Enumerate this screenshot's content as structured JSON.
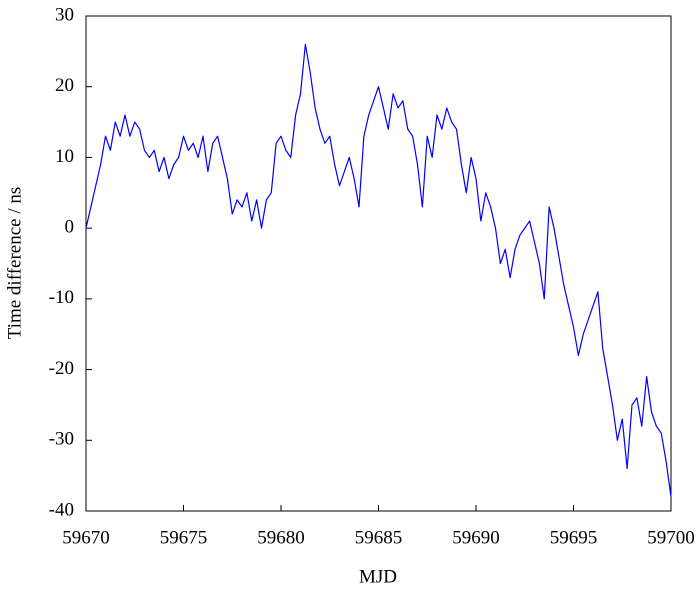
{
  "chart_data": {
    "type": "line",
    "x_label": "MJD",
    "y_label": "Time difference / ns",
    "x": [
      59670,
      59670.25,
      59670.5,
      59670.75,
      59671,
      59671.25,
      59671.5,
      59671.75,
      59672,
      59672.25,
      59672.5,
      59672.75,
      59673,
      59673.25,
      59673.5,
      59673.75,
      59674,
      59674.25,
      59674.5,
      59674.75,
      59675,
      59675.25,
      59675.5,
      59675.75,
      59676,
      59676.25,
      59676.5,
      59676.75,
      59677,
      59677.25,
      59677.5,
      59677.75,
      59678,
      59678.25,
      59678.5,
      59678.75,
      59679,
      59679.25,
      59679.5,
      59679.75,
      59680,
      59680.25,
      59680.5,
      59680.75,
      59681,
      59681.25,
      59681.5,
      59681.75,
      59682,
      59682.25,
      59682.5,
      59682.75,
      59683,
      59683.25,
      59683.5,
      59683.75,
      59684,
      59684.25,
      59684.5,
      59684.75,
      59685,
      59685.25,
      59685.5,
      59685.75,
      59686,
      59686.25,
      59686.5,
      59686.75,
      59687,
      59687.25,
      59687.5,
      59687.75,
      59688,
      59688.25,
      59688.5,
      59688.75,
      59689,
      59689.25,
      59689.5,
      59689.75,
      59690,
      59690.25,
      59690.5,
      59690.75,
      59691,
      59691.25,
      59691.5,
      59691.75,
      59692,
      59692.25,
      59692.5,
      59692.75,
      59693,
      59693.25,
      59693.5,
      59693.75,
      59694,
      59694.25,
      59694.5,
      59694.75,
      59695,
      59695.25,
      59695.5,
      59695.75,
      59696,
      59696.25,
      59696.5,
      59696.75,
      59697,
      59697.25,
      59697.5,
      59697.75,
      59698,
      59698.25,
      59698.5,
      59698.75,
      59699,
      59699.25,
      59699.5,
      59699.75,
      59700
    ],
    "series": [
      {
        "color": "#0000ff",
        "values": [
          0,
          3,
          6,
          9,
          13,
          11,
          15,
          13,
          16,
          13,
          15,
          14,
          11,
          10,
          11,
          8,
          10,
          7,
          9,
          10,
          13,
          11,
          12,
          10,
          13,
          8,
          12,
          13,
          10,
          7,
          2,
          4,
          3,
          5,
          1,
          4,
          0,
          4,
          5,
          12,
          13,
          11,
          10,
          16,
          19,
          26,
          22,
          17,
          14,
          12,
          13,
          9,
          6,
          8,
          10,
          7,
          3,
          13,
          16,
          18,
          20,
          17,
          14,
          19,
          17,
          18,
          14,
          13,
          9,
          3,
          13,
          10,
          16,
          14,
          17,
          15,
          14,
          9,
          5,
          10,
          7,
          1,
          5,
          3,
          0,
          -5,
          -3,
          -7,
          -3,
          -1,
          0,
          1,
          -2,
          -5,
          -10,
          3,
          0,
          -4,
          -8,
          -11,
          -14,
          -18,
          -15,
          -13,
          -11,
          -9,
          -17,
          -21,
          -25,
          -30,
          -27,
          -34,
          -25,
          -24,
          -28,
          -21,
          -26,
          -28,
          -29,
          -33,
          -38
        ]
      }
    ],
    "xlim": [
      59670,
      59700
    ],
    "xticks": [
      59670,
      59675,
      59680,
      59685,
      59690,
      59695,
      59700
    ],
    "ylim": [
      -40,
      30
    ],
    "yticks": [
      -40,
      -30,
      -20,
      -10,
      0,
      10,
      20,
      30
    ],
    "grid": false
  }
}
